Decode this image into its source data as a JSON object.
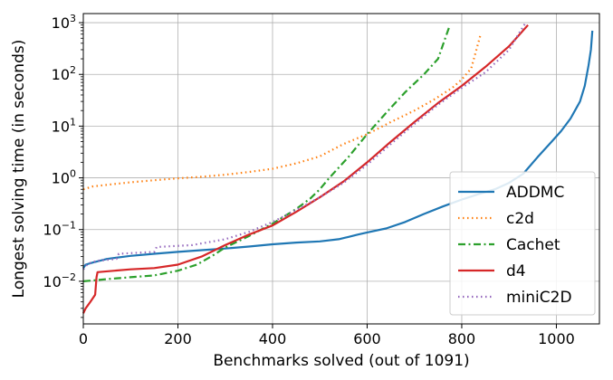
{
  "chart_data": {
    "type": "line",
    "title": "",
    "xlabel": "Benchmarks solved (out of 1091)",
    "ylabel": "Longest solving time (in seconds)",
    "xlim": [
      0,
      1091
    ],
    "ylim": [
      0.0015,
      1500
    ],
    "yscale": "log",
    "grid": true,
    "legend_position": "lower-right",
    "x_ticks": [
      0,
      200,
      400,
      600,
      800,
      1000
    ],
    "x_tick_labels": [
      "0",
      "200",
      "400",
      "600",
      "800",
      "1000"
    ],
    "y_ticks": [
      0.01,
      0.1,
      1,
      10,
      100,
      1000
    ],
    "y_tick_labels": [
      {
        "base": "10",
        "exp": "−2"
      },
      {
        "base": "10",
        "exp": "−1"
      },
      {
        "base": "10",
        "exp": "0"
      },
      {
        "base": "10",
        "exp": "1"
      },
      {
        "base": "10",
        "exp": "2"
      },
      {
        "base": "10",
        "exp": "3"
      }
    ],
    "series": [
      {
        "name": "ADDMC",
        "color": "#1f77b4",
        "dash": "solid",
        "points": [
          [
            0,
            0.018
          ],
          [
            5,
            0.021
          ],
          [
            20,
            0.023
          ],
          [
            50,
            0.027
          ],
          [
            100,
            0.031
          ],
          [
            150,
            0.034
          ],
          [
            200,
            0.037
          ],
          [
            250,
            0.04
          ],
          [
            300,
            0.043
          ],
          [
            350,
            0.047
          ],
          [
            400,
            0.052
          ],
          [
            450,
            0.056
          ],
          [
            500,
            0.059
          ],
          [
            540,
            0.065
          ],
          [
            560,
            0.072
          ],
          [
            580,
            0.08
          ],
          [
            600,
            0.088
          ],
          [
            640,
            0.105
          ],
          [
            680,
            0.14
          ],
          [
            720,
            0.2
          ],
          [
            760,
            0.28
          ],
          [
            800,
            0.38
          ],
          [
            840,
            0.5
          ],
          [
            870,
            0.6
          ],
          [
            900,
            0.8
          ],
          [
            930,
            1.2
          ],
          [
            960,
            2.5
          ],
          [
            990,
            5
          ],
          [
            1010,
            8
          ],
          [
            1030,
            14
          ],
          [
            1050,
            30
          ],
          [
            1060,
            60
          ],
          [
            1068,
            150
          ],
          [
            1073,
            300
          ],
          [
            1076,
            700
          ]
        ]
      },
      {
        "name": "c2d",
        "color": "#ff7f0e",
        "dash": "dotted",
        "points": [
          [
            0,
            0.6
          ],
          [
            20,
            0.68
          ],
          [
            60,
            0.75
          ],
          [
            100,
            0.82
          ],
          [
            150,
            0.9
          ],
          [
            200,
            0.98
          ],
          [
            250,
            1.05
          ],
          [
            300,
            1.15
          ],
          [
            350,
            1.3
          ],
          [
            400,
            1.5
          ],
          [
            450,
            1.9
          ],
          [
            500,
            2.6
          ],
          [
            550,
            4.5
          ],
          [
            600,
            7
          ],
          [
            650,
            12
          ],
          [
            700,
            20
          ],
          [
            740,
            32
          ],
          [
            780,
            55
          ],
          [
            800,
            80
          ],
          [
            820,
            130
          ],
          [
            833,
            350
          ],
          [
            840,
            600
          ]
        ]
      },
      {
        "name": "Cachet",
        "color": "#2ca02c",
        "dash": "dashdot",
        "points": [
          [
            0,
            0.01
          ],
          [
            50,
            0.011
          ],
          [
            100,
            0.012
          ],
          [
            150,
            0.013
          ],
          [
            200,
            0.016
          ],
          [
            240,
            0.021
          ],
          [
            270,
            0.03
          ],
          [
            300,
            0.045
          ],
          [
            350,
            0.075
          ],
          [
            400,
            0.13
          ],
          [
            450,
            0.25
          ],
          [
            480,
            0.4
          ],
          [
            500,
            0.6
          ],
          [
            520,
            1.0
          ],
          [
            560,
            2.5
          ],
          [
            600,
            7
          ],
          [
            640,
            18
          ],
          [
            680,
            45
          ],
          [
            720,
            100
          ],
          [
            750,
            200
          ],
          [
            765,
            500
          ],
          [
            775,
            900
          ]
        ]
      },
      {
        "name": "d4",
        "color": "#d62728",
        "dash": "solid",
        "points": [
          [
            0,
            0.0024
          ],
          [
            5,
            0.003
          ],
          [
            15,
            0.004
          ],
          [
            25,
            0.0055
          ],
          [
            28,
            0.012
          ],
          [
            30,
            0.015
          ],
          [
            100,
            0.017
          ],
          [
            150,
            0.018
          ],
          [
            200,
            0.021
          ],
          [
            250,
            0.03
          ],
          [
            300,
            0.05
          ],
          [
            350,
            0.08
          ],
          [
            400,
            0.12
          ],
          [
            450,
            0.22
          ],
          [
            500,
            0.42
          ],
          [
            550,
            0.85
          ],
          [
            600,
            2.0
          ],
          [
            650,
            5
          ],
          [
            700,
            12
          ],
          [
            750,
            28
          ],
          [
            800,
            60
          ],
          [
            850,
            140
          ],
          [
            900,
            350
          ],
          [
            940,
            900
          ]
        ]
      },
      {
        "name": "miniC2D",
        "color": "#9467bd",
        "dash": "dotted",
        "points": [
          [
            0,
            0.017
          ],
          [
            10,
            0.022
          ],
          [
            30,
            0.025
          ],
          [
            70,
            0.027
          ],
          [
            75,
            0.034
          ],
          [
            150,
            0.037
          ],
          [
            155,
            0.046
          ],
          [
            230,
            0.05
          ],
          [
            300,
            0.065
          ],
          [
            350,
            0.09
          ],
          [
            400,
            0.14
          ],
          [
            450,
            0.24
          ],
          [
            500,
            0.42
          ],
          [
            550,
            0.8
          ],
          [
            600,
            1.8
          ],
          [
            650,
            4.5
          ],
          [
            700,
            11
          ],
          [
            750,
            26
          ],
          [
            800,
            55
          ],
          [
            850,
            110
          ],
          [
            900,
            300
          ],
          [
            920,
            600
          ],
          [
            935,
            1000
          ]
        ]
      }
    ]
  }
}
